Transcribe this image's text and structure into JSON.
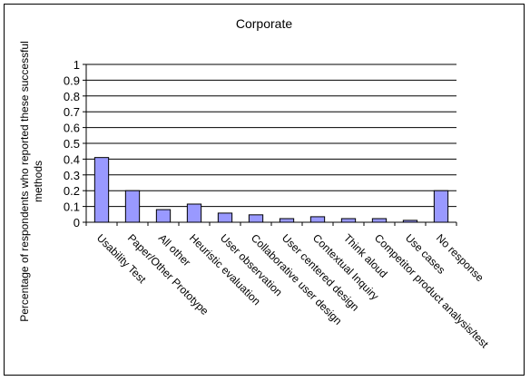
{
  "chart_data": {
    "type": "bar",
    "title": "Corporate",
    "xlabel": "",
    "ylabel": "Percentage of respondents who reported these successful methods",
    "ylabel_lines": [
      "Percentage of respondents who reported these successful",
      "methods"
    ],
    "ylim": [
      0,
      1
    ],
    "yticks": [
      "0",
      "0.1",
      "0.2",
      "0.3",
      "0.4",
      "0.5",
      "0.6",
      "0.7",
      "0.8",
      "0.9",
      "1"
    ],
    "grid": true,
    "legend": "none",
    "bar_color": "#9999ff",
    "categories": [
      "Usability Test",
      "Paper/Other Prototype",
      "All other",
      "Heuristic evaluation",
      "User observation",
      "Collaborative user design",
      "User centered design",
      "Contextual Inquiry",
      "Think aloud",
      "Competitor product analysis/test",
      "Use cases",
      "No response"
    ],
    "values": [
      0.41,
      0.2,
      0.08,
      0.115,
      0.058,
      0.047,
      0.023,
      0.035,
      0.023,
      0.023,
      0.012,
      0.2
    ]
  }
}
